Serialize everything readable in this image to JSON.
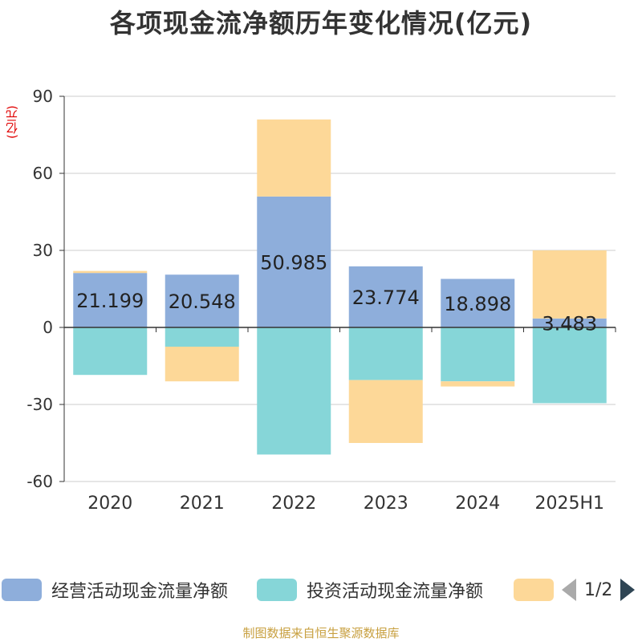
{
  "title": "各项现金流净额历年变化情况(亿元)",
  "unit_label": "(亿元)",
  "footer": "制图数据来自恒生聚源数据库",
  "legend": {
    "items": [
      {
        "label": "经营活动现金流量净额",
        "color": "#8eaedb"
      },
      {
        "label": "投资活动现金流量净额",
        "color": "#86d6d8"
      },
      {
        "label": "",
        "color": "#fdd898"
      }
    ],
    "page": "1/2"
  },
  "chart_data": {
    "type": "bar",
    "stacked": true,
    "categories": [
      "2020",
      "2021",
      "2022",
      "2023",
      "2024",
      "2025H1"
    ],
    "ylim": [
      -60,
      90
    ],
    "yticks": [
      -60,
      -30,
      0,
      30,
      60,
      90
    ],
    "grid": true,
    "legend_position": "bottom",
    "series": [
      {
        "name": "经营活动现金流量净额",
        "color": "#8eaedb",
        "values": [
          21.199,
          20.548,
          50.985,
          23.774,
          18.898,
          3.483
        ],
        "labels": [
          "21.199",
          "20.548",
          "50.985",
          "23.774",
          "18.898",
          "3.483"
        ]
      },
      {
        "name": "投资活动现金流量净额",
        "color": "#86d6d8",
        "values": [
          -18.5,
          -7.5,
          -49.5,
          -20.5,
          -21.0,
          -29.5
        ]
      },
      {
        "color": "#fdd898",
        "values": [
          0.8,
          -13.5,
          30.0,
          -24.5,
          -2.0,
          26.5
        ]
      }
    ]
  }
}
